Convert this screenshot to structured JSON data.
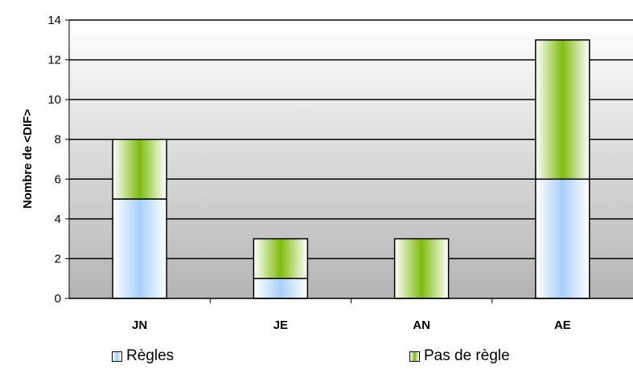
{
  "chart_data": {
    "type": "bar",
    "stacked": true,
    "categories": [
      "JN",
      "JE",
      "AN",
      "AE"
    ],
    "series": [
      {
        "name": "Règles",
        "values": [
          5,
          1,
          0,
          6
        ],
        "color": "#a8d0f8"
      },
      {
        "name": "Pas de règle",
        "values": [
          3,
          2,
          3,
          7
        ],
        "color": "#8cc21c"
      }
    ],
    "ylabel": "Nombre de <DIF>",
    "xlabel": "",
    "ylim": [
      0,
      14
    ],
    "yticks": [
      0,
      2,
      4,
      6,
      8,
      10,
      12,
      14
    ],
    "grid": true,
    "legend": "bottom"
  }
}
